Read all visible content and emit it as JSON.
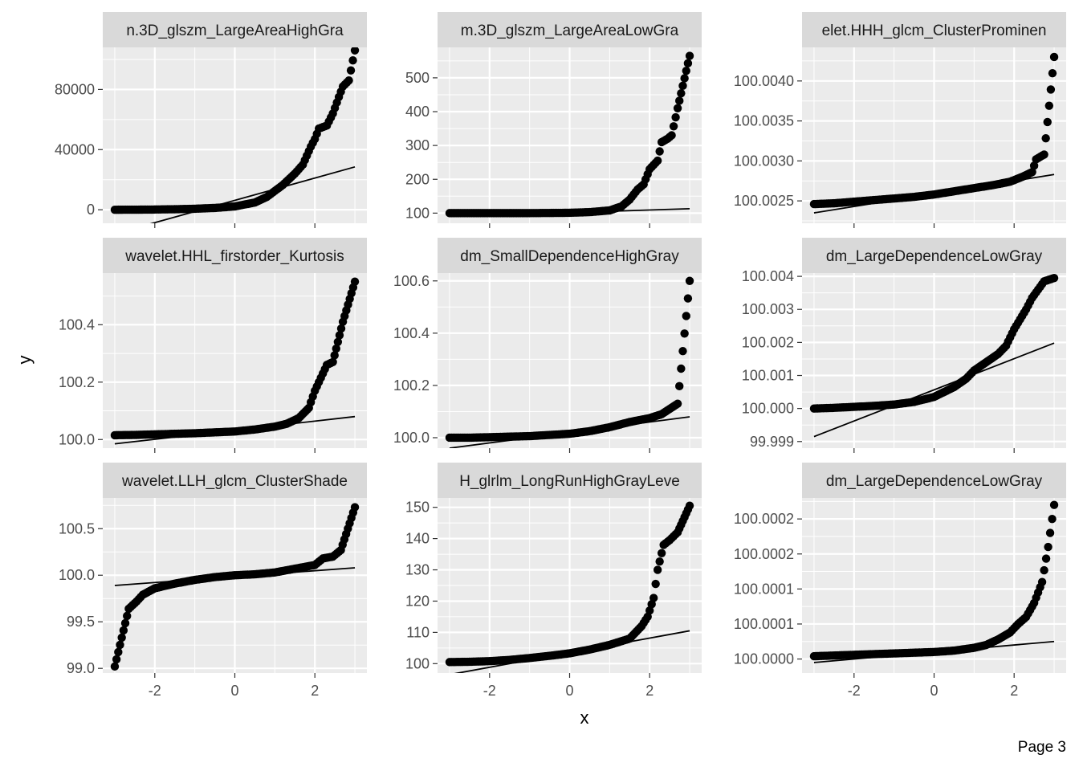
{
  "colors": {
    "panel_bg": "#ebebeb",
    "strip_bg": "#d9d9d9",
    "grid_major": "#ffffff",
    "points": "#000000",
    "line": "#000000"
  },
  "page_label": "Page 3",
  "chart_data": {
    "type": "scatter",
    "subtype": "qq-plot faceted",
    "xlabel": "x",
    "ylabel": "y",
    "grid": true,
    "x_ticks": [
      -2,
      0,
      2
    ],
    "x_tick_labels": [
      "-2",
      "0",
      "2"
    ],
    "xlim": [
      -3.3,
      3.3
    ],
    "panels": [
      {
        "strip": "n.3D_glszm_LargeAreaHighGra",
        "ylim": [
          -9000,
          108000
        ],
        "y_ticks": [
          0,
          40000,
          80000
        ],
        "y_tick_labels": [
          "0",
          "40000",
          "80000"
        ],
        "line": [
          [
            -3.0,
            -16000
          ],
          [
            3.0,
            28500
          ]
        ],
        "quantiles": [
          [
            -3.0,
            0
          ],
          [
            -2.5,
            50
          ],
          [
            -2.0,
            150
          ],
          [
            -1.5,
            350
          ],
          [
            -1.0,
            650
          ],
          [
            -0.5,
            1200
          ],
          [
            0.0,
            2200
          ],
          [
            0.5,
            4800
          ],
          [
            0.8,
            8500
          ],
          [
            1.0,
            12500
          ],
          [
            1.2,
            16500
          ],
          [
            1.5,
            24000
          ],
          [
            1.7,
            30000
          ],
          [
            1.8,
            36000
          ],
          [
            1.9,
            42000
          ],
          [
            2.0,
            47000
          ],
          [
            2.1,
            54000
          ],
          [
            2.3,
            56000
          ],
          [
            2.45,
            64000
          ],
          [
            2.6,
            75000
          ],
          [
            2.7,
            82000
          ],
          [
            2.85,
            86000
          ],
          [
            3.0,
            106000
          ]
        ]
      },
      {
        "strip": "m.3D_glszm_LargeAreaLowGra",
        "ylim": [
          70,
          590
        ],
        "y_ticks": [
          100,
          200,
          300,
          400,
          500
        ],
        "y_tick_labels": [
          "100",
          "200",
          "300",
          "400",
          "500"
        ],
        "line": [
          [
            -3.0,
            90
          ],
          [
            3.0,
            113
          ]
        ],
        "quantiles": [
          [
            -3.0,
            100
          ],
          [
            -2.5,
            100
          ],
          [
            -2.0,
            100
          ],
          [
            -1.0,
            100
          ],
          [
            0.0,
            101
          ],
          [
            0.5,
            103
          ],
          [
            1.0,
            108
          ],
          [
            1.3,
            120
          ],
          [
            1.5,
            140
          ],
          [
            1.7,
            170
          ],
          [
            1.85,
            185
          ],
          [
            2.0,
            230
          ],
          [
            2.2,
            255
          ],
          [
            2.3,
            310
          ],
          [
            2.45,
            320
          ],
          [
            2.55,
            330
          ],
          [
            2.7,
            410
          ],
          [
            3.0,
            565
          ]
        ]
      },
      {
        "strip": "elet.HHH_glcm_ClusterProminen",
        "ylim": [
          100.00222,
          100.00442
        ],
        "y_ticks": [
          100.0025,
          100.003,
          100.0035,
          100.004
        ],
        "y_tick_labels": [
          "100.0025",
          "100.0030",
          "100.0035",
          "100.0040"
        ],
        "line": [
          [
            -3.0,
            100.00235
          ],
          [
            3.0,
            100.00283
          ]
        ],
        "quantiles": [
          [
            -3.0,
            100.00246
          ],
          [
            -2.5,
            100.00247
          ],
          [
            -2.0,
            100.00249
          ],
          [
            -1.5,
            100.00251
          ],
          [
            -1.0,
            100.00253
          ],
          [
            -0.5,
            100.00255
          ],
          [
            0.0,
            100.00258
          ],
          [
            0.5,
            100.00262
          ],
          [
            1.0,
            100.00266
          ],
          [
            1.5,
            100.0027
          ],
          [
            1.9,
            100.00274
          ],
          [
            2.2,
            100.0028
          ],
          [
            2.45,
            100.00286
          ],
          [
            2.55,
            100.00302
          ],
          [
            2.75,
            100.00308
          ],
          [
            3.0,
            100.0043
          ]
        ]
      },
      {
        "strip": "wavelet.HHL_firstorder_Kurtosis",
        "ylim": [
          99.97,
          100.58
        ],
        "y_ticks": [
          100.0,
          100.2,
          100.4
        ],
        "y_tick_labels": [
          "100.0",
          "100.2",
          "100.4"
        ],
        "line": [
          [
            -3.0,
            99.985
          ],
          [
            3.0,
            100.08
          ]
        ],
        "quantiles": [
          [
            -3.0,
            100.015
          ],
          [
            -2.5,
            100.016
          ],
          [
            -2.0,
            100.018
          ],
          [
            -1.5,
            100.02
          ],
          [
            -1.0,
            100.022
          ],
          [
            -0.5,
            100.025
          ],
          [
            0.0,
            100.028
          ],
          [
            0.5,
            100.035
          ],
          [
            1.0,
            100.045
          ],
          [
            1.3,
            100.055
          ],
          [
            1.6,
            100.075
          ],
          [
            1.85,
            100.11
          ],
          [
            2.0,
            100.17
          ],
          [
            2.1,
            100.2
          ],
          [
            2.3,
            100.26
          ],
          [
            2.45,
            100.27
          ],
          [
            2.7,
            100.41
          ],
          [
            3.0,
            100.55
          ]
        ]
      },
      {
        "strip": "dm_SmallDependenceHighGray",
        "ylim": [
          99.96,
          100.63
        ],
        "y_ticks": [
          100.0,
          100.2,
          100.4,
          100.6
        ],
        "y_tick_labels": [
          "100.0",
          "100.2",
          "100.4",
          "100.6"
        ],
        "line": [
          [
            -3.0,
            99.96
          ],
          [
            3.0,
            100.08
          ]
        ],
        "quantiles": [
          [
            -3.0,
            100.0
          ],
          [
            -2.5,
            100.0
          ],
          [
            -2.0,
            100.002
          ],
          [
            -1.0,
            100.006
          ],
          [
            0.0,
            100.015
          ],
          [
            0.5,
            100.025
          ],
          [
            1.0,
            100.04
          ],
          [
            1.5,
            100.06
          ],
          [
            2.0,
            100.075
          ],
          [
            2.3,
            100.09
          ],
          [
            2.5,
            100.11
          ],
          [
            2.7,
            100.13
          ],
          [
            3.0,
            100.6
          ]
        ]
      },
      {
        "strip": "dm_LargeDependenceLowGray",
        "ylim": [
          99.9988,
          100.0041
        ],
        "y_ticks": [
          99.999,
          100.0,
          100.001,
          100.002,
          100.003,
          100.004
        ],
        "y_tick_labels": [
          "99.999",
          "100.000",
          "100.001",
          "100.002",
          "100.003",
          "100.004"
        ],
        "line": [
          [
            -3.0,
            99.99915
          ],
          [
            3.0,
            100.00198
          ]
        ],
        "quantiles": [
          [
            -3.0,
            100.0
          ],
          [
            -2.5,
            100.00002
          ],
          [
            -2.0,
            100.00005
          ],
          [
            -1.5,
            100.00008
          ],
          [
            -1.0,
            100.00012
          ],
          [
            -0.5,
            100.0002
          ],
          [
            0.0,
            100.00035
          ],
          [
            0.5,
            100.00065
          ],
          [
            0.8,
            100.0009
          ],
          [
            1.0,
            100.00115
          ],
          [
            1.3,
            100.0014
          ],
          [
            1.6,
            100.00165
          ],
          [
            1.8,
            100.0019
          ],
          [
            2.0,
            100.0024
          ],
          [
            2.15,
            100.0027
          ],
          [
            2.3,
            100.003
          ],
          [
            2.45,
            100.00335
          ],
          [
            2.6,
            100.0036
          ],
          [
            2.75,
            100.00385
          ],
          [
            3.0,
            100.00395
          ]
        ]
      },
      {
        "strip": "wavelet.LLH_glcm_ClusterShade",
        "ylim": [
          98.95,
          100.83
        ],
        "y_ticks": [
          99.0,
          99.5,
          100.0,
          100.5
        ],
        "y_tick_labels": [
          "99.0",
          "99.5",
          "100.0",
          "100.5"
        ],
        "line": [
          [
            -3.0,
            99.89
          ],
          [
            3.0,
            100.08
          ]
        ],
        "quantiles": [
          [
            -3.0,
            99.02
          ],
          [
            -2.65,
            99.64
          ],
          [
            -2.45,
            99.72
          ],
          [
            -2.3,
            99.79
          ],
          [
            -2.0,
            99.86
          ],
          [
            -1.5,
            99.91
          ],
          [
            -1.0,
            99.95
          ],
          [
            -0.5,
            99.98
          ],
          [
            0.0,
            100.0
          ],
          [
            0.5,
            100.01
          ],
          [
            1.0,
            100.03
          ],
          [
            1.5,
            100.07
          ],
          [
            2.0,
            100.11
          ],
          [
            2.2,
            100.18
          ],
          [
            2.45,
            100.2
          ],
          [
            2.65,
            100.27
          ],
          [
            3.0,
            100.73
          ]
        ]
      },
      {
        "strip": "H_glrlm_LongRunHighGrayLeve",
        "ylim": [
          97,
          153
        ],
        "y_ticks": [
          100,
          110,
          120,
          130,
          140,
          150
        ],
        "y_tick_labels": [
          "100",
          "110",
          "120",
          "130",
          "140",
          "150"
        ],
        "line": [
          [
            -3.0,
            96.5
          ],
          [
            3.0,
            110.5
          ]
        ],
        "quantiles": [
          [
            -3.0,
            100.5
          ],
          [
            -2.5,
            100.6
          ],
          [
            -2.0,
            100.8
          ],
          [
            -1.5,
            101.2
          ],
          [
            -1.0,
            101.8
          ],
          [
            -0.5,
            102.5
          ],
          [
            0.0,
            103.3
          ],
          [
            0.5,
            104.5
          ],
          [
            1.0,
            106.0
          ],
          [
            1.5,
            108.0
          ],
          [
            1.8,
            112.0
          ],
          [
            1.95,
            115.0
          ],
          [
            2.1,
            121.0
          ],
          [
            2.2,
            130.0
          ],
          [
            2.35,
            138.0
          ],
          [
            2.5,
            139.5
          ],
          [
            2.7,
            142.0
          ],
          [
            3.0,
            150.5
          ]
        ]
      },
      {
        "strip": "dm_LargeDependenceLowGray",
        "ylim": [
          99.99998,
          100.00023
        ],
        "y_ticks": [
          100.0,
          100.00005,
          100.0001,
          100.00015,
          100.0002
        ],
        "y_tick_labels": [
          "100.0000",
          "100.0001",
          "100.0001",
          "100.0002",
          "100.0002"
        ],
        "line": [
          [
            -3.0,
            99.999995
          ],
          [
            3.0,
            100.000025
          ]
        ],
        "quantiles": [
          [
            -3.0,
            100.000004
          ],
          [
            -2.5,
            100.000005
          ],
          [
            -2.0,
            100.000006
          ],
          [
            -1.0,
            100.000008
          ],
          [
            0.0,
            100.00001
          ],
          [
            0.5,
            100.000012
          ],
          [
            1.0,
            100.000016
          ],
          [
            1.3,
            100.00002
          ],
          [
            1.6,
            100.000028
          ],
          [
            1.9,
            100.000038
          ],
          [
            2.1,
            100.00005
          ],
          [
            2.3,
            100.00006
          ],
          [
            2.5,
            100.00008
          ],
          [
            2.7,
            100.00011
          ],
          [
            2.85,
            100.00016
          ],
          [
            3.0,
            100.00022
          ]
        ]
      }
    ]
  }
}
